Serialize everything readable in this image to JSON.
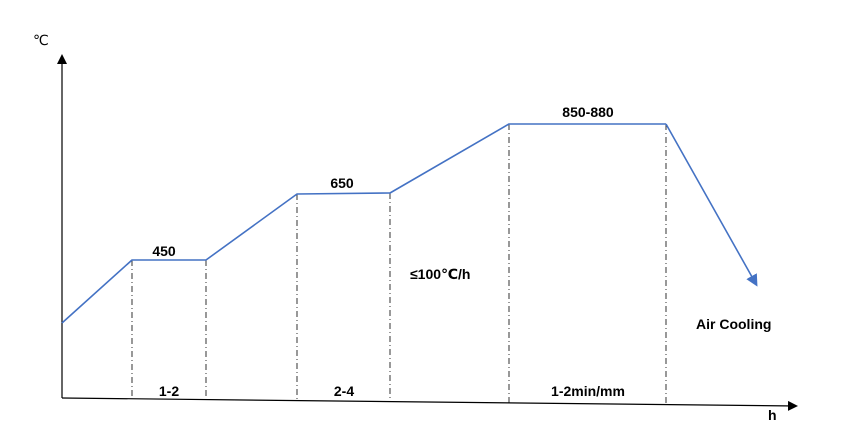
{
  "axes": {
    "y_unit": "℃",
    "x_unit": "h"
  },
  "curve_color": "#4472C4",
  "axis_color": "#000000",
  "stages": [
    {
      "temperature": "450",
      "duration": "1-2"
    },
    {
      "temperature": "650",
      "duration": "2-4"
    },
    {
      "temperature": "850-880",
      "duration": "1-2min/mm"
    }
  ],
  "heating_rate": "≤100℃/h",
  "cooling": "Air Cooling"
}
